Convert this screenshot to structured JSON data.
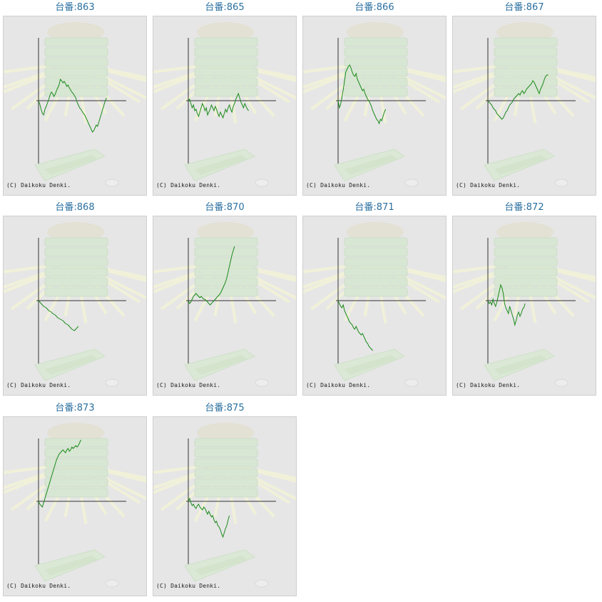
{
  "page": {
    "copyright": "(C) Daikoku Denki.",
    "colors": {
      "line": "#1a8a1a",
      "axis": "#333333",
      "title": "#2a6fa0",
      "panel": "#e6e6e6"
    }
  },
  "chart_data": [
    {
      "type": "line",
      "title": "台番:863",
      "values": [
        0,
        -5,
        -12,
        -18,
        -20,
        -12,
        -8,
        -3,
        2,
        8,
        12,
        10,
        6,
        9,
        14,
        18,
        22,
        30,
        28,
        25,
        27,
        24,
        20,
        22,
        18,
        15,
        12,
        10,
        7,
        4,
        -2,
        -6,
        -10,
        -12,
        -15,
        -18,
        -20,
        -24,
        -28,
        -32,
        -36,
        -40,
        -44,
        -42,
        -38,
        -34,
        -36,
        -30,
        -24,
        -18,
        -12,
        -6,
        0,
        4
      ]
    },
    {
      "type": "line",
      "title": "台番:865",
      "values": [
        0,
        2,
        -4,
        -10,
        -6,
        -14,
        -12,
        -18,
        -22,
        -16,
        -10,
        -4,
        -8,
        -14,
        -10,
        -20,
        -16,
        -12,
        -6,
        -10,
        -14,
        -8,
        -12,
        -18,
        -22,
        -16,
        -20,
        -24,
        -18,
        -12,
        -16,
        -10,
        -6,
        -12,
        -16,
        -8,
        -4,
        2,
        6,
        10,
        4,
        -2,
        -6,
        -10,
        -4,
        -8,
        -12,
        -14
      ]
    },
    {
      "type": "line",
      "title": "台番:866",
      "values": [
        0,
        -10,
        -5,
        5,
        15,
        28,
        40,
        44,
        48,
        50,
        46,
        40,
        36,
        34,
        38,
        30,
        26,
        22,
        18,
        14,
        16,
        10,
        6,
        2,
        0,
        -4,
        -8,
        -14,
        -18,
        -22,
        -26,
        -28,
        -32,
        -26,
        -28,
        -22,
        -16,
        -12
      ]
    },
    {
      "type": "line",
      "title": "台番:867",
      "values": [
        0,
        -2,
        -4,
        -6,
        -10,
        -12,
        -14,
        -18,
        -20,
        -22,
        -24,
        -26,
        -24,
        -20,
        -16,
        -14,
        -10,
        -6,
        -4,
        -2,
        2,
        4,
        6,
        8,
        10,
        8,
        12,
        14,
        10,
        12,
        16,
        18,
        20,
        22,
        24,
        28,
        26,
        22,
        18,
        14,
        10,
        16,
        20,
        24,
        30,
        34,
        36,
        36
      ]
    },
    {
      "type": "line",
      "title": "台番:868",
      "values": [
        0,
        -2,
        -4,
        -6,
        -8,
        -9,
        -10,
        -12,
        -14,
        -15,
        -16,
        -18,
        -19,
        -20,
        -22,
        -24,
        -25,
        -26,
        -27,
        -28,
        -30,
        -32,
        -33,
        -34,
        -36,
        -38,
        -40,
        -41,
        -42,
        -40,
        -38,
        -36
      ]
    },
    {
      "type": "line",
      "title": "台番:870",
      "values": [
        0,
        -4,
        -2,
        2,
        6,
        8,
        10,
        8,
        6,
        4,
        6,
        4,
        2,
        2,
        0,
        -2,
        -4,
        -6,
        -4,
        -2,
        0,
        2,
        4,
        6,
        8,
        10,
        14,
        18,
        22,
        26,
        32,
        40,
        48,
        56,
        64,
        70,
        76
      ]
    },
    {
      "type": "line",
      "title": "台番:871",
      "values": [
        0,
        -4,
        -8,
        -10,
        -6,
        -14,
        -18,
        -22,
        -26,
        -30,
        -32,
        -34,
        -38,
        -40,
        -36,
        -40,
        -44,
        -46,
        -48,
        -46,
        -50,
        -54,
        -58,
        -60,
        -64,
        -66,
        -68,
        -70
      ]
    },
    {
      "type": "line",
      "title": "台番:872",
      "values": [
        0,
        -4,
        -2,
        -6,
        2,
        -4,
        -8,
        -2,
        6,
        14,
        22,
        18,
        10,
        -4,
        -10,
        -14,
        -18,
        -8,
        -14,
        -20,
        -26,
        -34,
        -28,
        -20,
        -16,
        -22,
        -18,
        -12,
        -10,
        -4
      ]
    },
    {
      "type": "line",
      "title": "台番:873",
      "values": [
        0,
        -4,
        -6,
        -8,
        -2,
        4,
        10,
        16,
        22,
        28,
        34,
        40,
        46,
        52,
        58,
        62,
        66,
        68,
        70,
        72,
        70,
        68,
        72,
        74,
        70,
        72,
        76,
        74,
        76,
        78,
        76,
        78,
        82,
        86
      ]
    },
    {
      "type": "line",
      "title": "台番:875",
      "values": [
        0,
        4,
        -2,
        -6,
        -4,
        -8,
        -10,
        -6,
        -4,
        -8,
        -10,
        -12,
        -8,
        -10,
        -14,
        -18,
        -14,
        -18,
        -22,
        -20,
        -26,
        -30,
        -28,
        -34,
        -36,
        -40,
        -46,
        -50,
        -44,
        -38,
        -34,
        -26,
        -20
      ]
    }
  ]
}
